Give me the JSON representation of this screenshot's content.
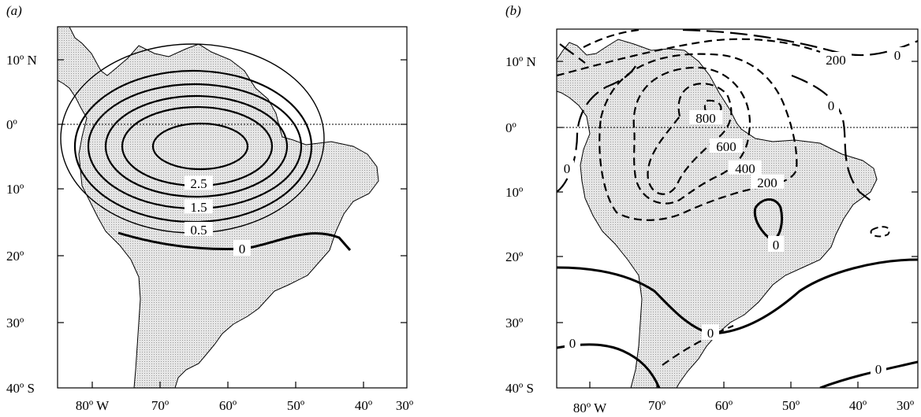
{
  "panels": [
    {
      "id": "a",
      "label": "(a)",
      "lat_ticks": [
        "10º N",
        "0º",
        "10º",
        "20º",
        "30º",
        "40º S"
      ],
      "lon_ticks": [
        "80º W",
        "70º",
        "60º",
        "50º",
        "40º",
        "30º"
      ],
      "contour_labels": [
        "2.5",
        "1.5",
        "0.5",
        "0"
      ]
    },
    {
      "id": "b",
      "label": "(b)",
      "lat_ticks": [
        "10º N",
        "0º",
        "10º",
        "20º",
        "30º",
        "40º S"
      ],
      "lon_ticks": [
        "80º W",
        "70º",
        "60º",
        "50º",
        "40º",
        "30º"
      ],
      "contour_labels": [
        "800",
        "600",
        "400",
        "200",
        "200",
        "0",
        "0",
        "0",
        "0",
        "0",
        "0",
        "0"
      ]
    }
  ],
  "map_extent": {
    "lon_range": [
      -85,
      -30
    ],
    "lat_range": [
      -40,
      14
    ]
  },
  "colors": {
    "land_fill": "#d4d4d4",
    "contour": "#000000"
  }
}
